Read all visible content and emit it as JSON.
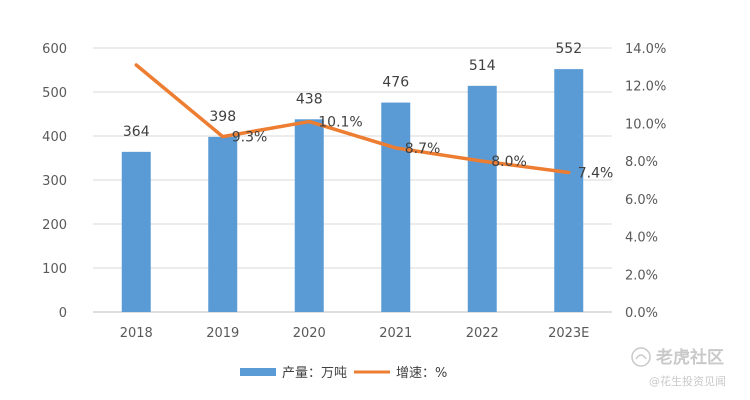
{
  "chart_data": {
    "type": "bar",
    "categories": [
      "2018",
      "2019",
      "2020",
      "2021",
      "2022",
      "2023E"
    ],
    "series": [
      {
        "name": "产量：万吨",
        "type": "bar",
        "axis": "left",
        "values": [
          364,
          398,
          438,
          476,
          514,
          552
        ],
        "labels": [
          "364",
          "398",
          "438",
          "476",
          "514",
          "552"
        ],
        "color": "#5b9bd5"
      },
      {
        "name": "增速：%",
        "type": "line",
        "axis": "right",
        "values": [
          13.1,
          9.3,
          10.1,
          8.7,
          8.0,
          7.4
        ],
        "labels": [
          "",
          "9.3%",
          "10.1%",
          "8.7%",
          "8.0%",
          "7.4%"
        ],
        "color": "#ed7d31"
      }
    ],
    "y_left": {
      "min": 0,
      "max": 600,
      "ticks": [
        "0",
        "100",
        "200",
        "300",
        "400",
        "500",
        "600"
      ]
    },
    "y_right": {
      "min": 0,
      "max": 14,
      "ticks": [
        "0.0%",
        "2.0%",
        "4.0%",
        "6.0%",
        "8.0%",
        "10.0%",
        "12.0%",
        "14.0%"
      ]
    },
    "grid": true,
    "legend_position": "bottom"
  },
  "watermark": {
    "main": "老虎社区",
    "sub": "@花生投资见闻",
    "icon": "tiger-community-logo-icon"
  }
}
